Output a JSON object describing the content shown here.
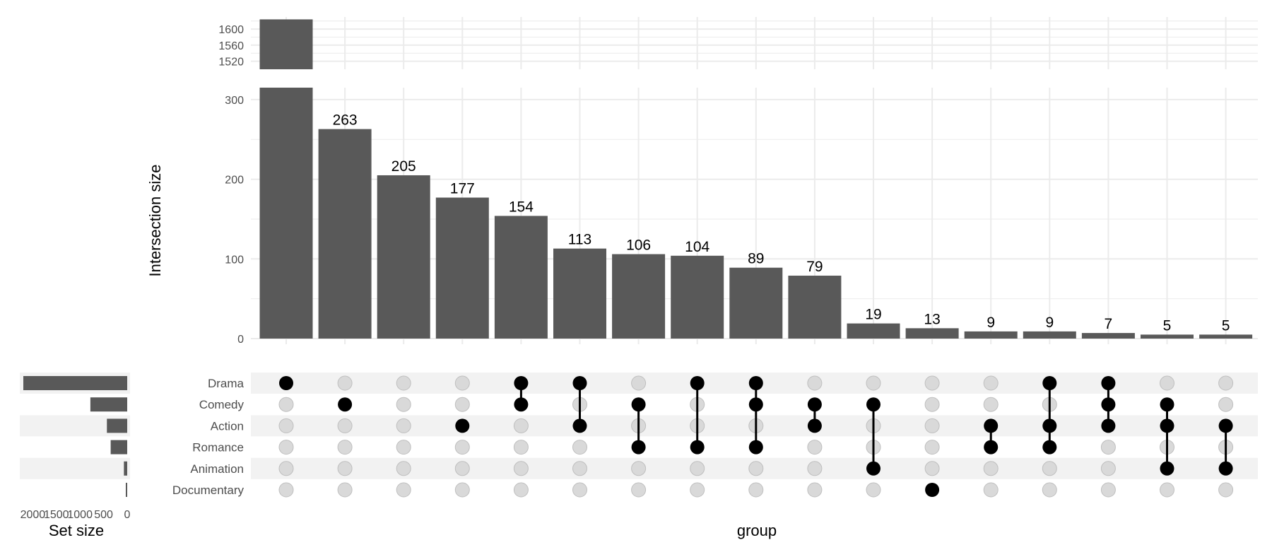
{
  "chart_data": {
    "type": "bar",
    "variant": "upset",
    "xlabel": "group",
    "ylabel": "Intersection size",
    "set_size_label": "Set size",
    "sets": [
      "Drama",
      "Comedy",
      "Action",
      "Romance",
      "Animation",
      "Documentary"
    ],
    "set_sizes": [
      2200,
      780,
      430,
      350,
      70,
      20
    ],
    "set_size_ticks": [
      2000,
      1500,
      1000,
      500,
      0
    ],
    "y_ticks_lower": [
      0,
      100,
      200,
      300
    ],
    "y_ticks_upper": [
      1520,
      1560,
      1600
    ],
    "ylim_lower": [
      0,
      315
    ],
    "ylim_upper": [
      1500,
      1630
    ],
    "intersections": [
      {
        "value": 1624,
        "label": "",
        "sets": [
          "Drama"
        ]
      },
      {
        "value": 263,
        "label": "263",
        "sets": [
          "Comedy"
        ]
      },
      {
        "value": 205,
        "label": "205",
        "sets": []
      },
      {
        "value": 177,
        "label": "177",
        "sets": [
          "Action"
        ]
      },
      {
        "value": 154,
        "label": "154",
        "sets": [
          "Drama",
          "Comedy"
        ]
      },
      {
        "value": 113,
        "label": "113",
        "sets": [
          "Drama",
          "Action"
        ]
      },
      {
        "value": 106,
        "label": "106",
        "sets": [
          "Comedy",
          "Romance"
        ]
      },
      {
        "value": 104,
        "label": "104",
        "sets": [
          "Drama",
          "Romance"
        ]
      },
      {
        "value": 89,
        "label": "89",
        "sets": [
          "Drama",
          "Comedy",
          "Romance"
        ]
      },
      {
        "value": 79,
        "label": "79",
        "sets": [
          "Comedy",
          "Action"
        ]
      },
      {
        "value": 19,
        "label": "19",
        "sets": [
          "Comedy",
          "Animation"
        ]
      },
      {
        "value": 13,
        "label": "13",
        "sets": [
          "Documentary"
        ]
      },
      {
        "value": 9,
        "label": "9",
        "sets": [
          "Action",
          "Romance"
        ]
      },
      {
        "value": 9,
        "label": "9",
        "sets": [
          "Drama",
          "Action",
          "Romance"
        ]
      },
      {
        "value": 7,
        "label": "7",
        "sets": [
          "Drama",
          "Comedy",
          "Action"
        ]
      },
      {
        "value": 5,
        "label": "5",
        "sets": [
          "Comedy",
          "Action",
          "Animation"
        ]
      },
      {
        "value": 5,
        "label": "5",
        "sets": [
          "Action",
          "Animation"
        ]
      }
    ],
    "colors": {
      "bar": "#595959",
      "dot_on": "#000000",
      "dot_off": "#d9d9d9",
      "dot_off_stroke": "#bfbfbf",
      "grid": "#ebebeb",
      "stripe": "#f2f2f2"
    },
    "grid": true
  }
}
